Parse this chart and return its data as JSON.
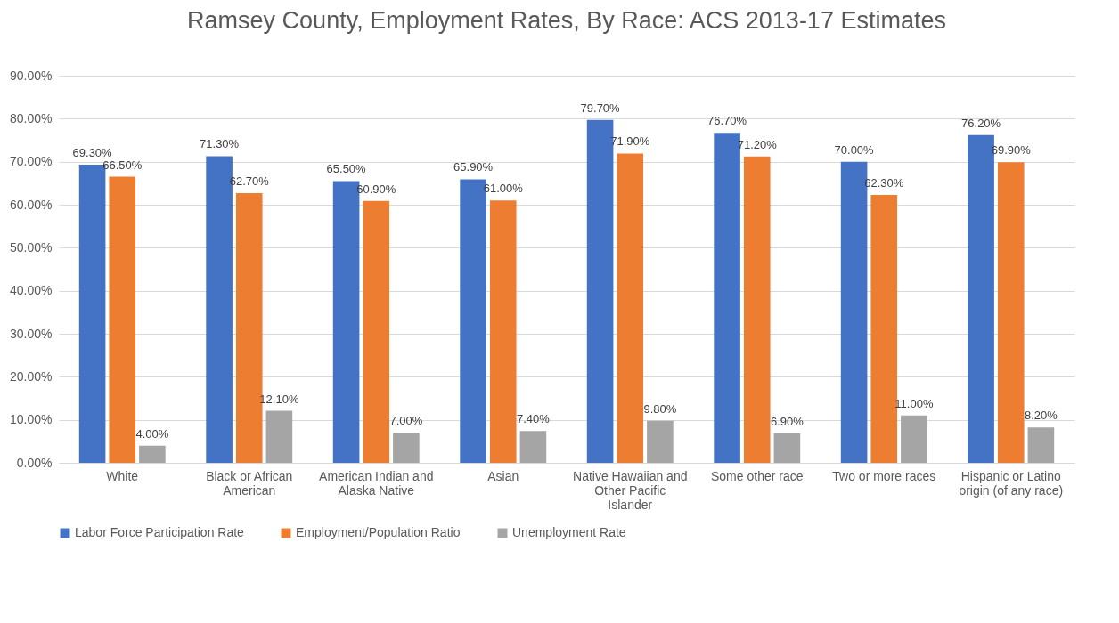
{
  "chart_data": {
    "type": "bar",
    "title": "Ramsey County, Employment Rates, By Race:  ACS 2013-17 Estimates",
    "categories": [
      "White",
      "Black or African American",
      "American Indian and Alaska Native",
      "Asian",
      "Native Hawaiian and Other Pacific Islander",
      "Some other race",
      "Two or more races",
      "Hispanic or Latino origin (of any race)"
    ],
    "series": [
      {
        "name": "Labor Force Participation Rate",
        "color": "#4472c4",
        "values": [
          69.3,
          71.3,
          65.5,
          65.9,
          79.7,
          76.7,
          70.0,
          76.2
        ],
        "value_labels": [
          "69.30%",
          "71.30%",
          "65.50%",
          "65.90%",
          "79.70%",
          "76.70%",
          "70.00%",
          "76.20%"
        ]
      },
      {
        "name": "Employment/Population Ratio",
        "color": "#ed7d31",
        "values": [
          66.5,
          62.7,
          60.9,
          61.0,
          71.9,
          71.2,
          62.3,
          69.9
        ],
        "value_labels": [
          "66.50%",
          "62.70%",
          "60.90%",
          "61.00%",
          "71.90%",
          "71.20%",
          "62.30%",
          "69.90%"
        ]
      },
      {
        "name": "Unemployment Rate",
        "color": "#a5a5a5",
        "values": [
          4.0,
          12.1,
          7.0,
          7.4,
          9.8,
          6.9,
          11.0,
          8.2
        ],
        "value_labels": [
          "4.00%",
          "12.10%",
          "7.00%",
          "7.40%",
          "9.80%",
          "6.90%",
          "11.00%",
          "8.20%"
        ]
      }
    ],
    "ylim": [
      0,
      90
    ],
    "yticks": [
      {
        "value": 0,
        "label": "0.00%"
      },
      {
        "value": 10,
        "label": "10.00%"
      },
      {
        "value": 20,
        "label": "20.00%"
      },
      {
        "value": 30,
        "label": "30.00%"
      },
      {
        "value": 40,
        "label": "40.00%"
      },
      {
        "value": 50,
        "label": "50.00%"
      },
      {
        "value": 60,
        "label": "60.00%"
      },
      {
        "value": 70,
        "label": "70.00%"
      },
      {
        "value": 80,
        "label": "80.00%"
      },
      {
        "value": 90,
        "label": "90.00%"
      }
    ],
    "grid": "y",
    "legend": "bottom"
  }
}
